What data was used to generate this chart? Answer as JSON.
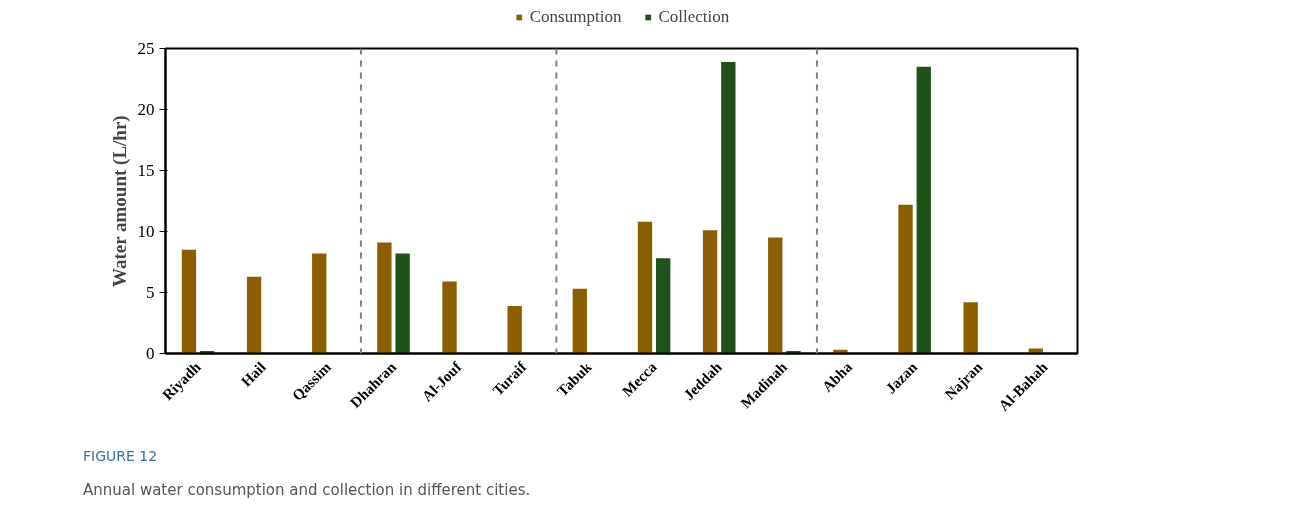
{
  "chart_data": {
    "type": "bar",
    "title": "FIGURE 12",
    "annotations": [
      "Annual water consumption and collection in different cities."
    ],
    "ylabel": "Water amount (L/hr)",
    "categories": [
      "Riyadh",
      "Hail",
      "Qassim",
      "Dhahran",
      "Al-Jouf",
      "Turaif",
      "Tabuk",
      "Mecca",
      "Jeddah",
      "Madinah",
      "Abha",
      "Jazan",
      "Najran",
      "Al-Bahah"
    ],
    "series": [
      {
        "name": "Consumption",
        "color": "#8b5e00",
        "values": [
          8.5,
          6.3,
          8.2,
          9.1,
          5.9,
          3.9,
          5.3,
          10.8,
          10.1,
          9.5,
          0.3,
          12.2,
          4.2,
          0.4
        ]
      },
      {
        "name": "Collection",
        "color": "#1e5218",
        "values": [
          0.2,
          0,
          0,
          8.2,
          0,
          0,
          0,
          7.8,
          23.9,
          0.2,
          0,
          23.5,
          0,
          0
        ]
      }
    ],
    "ylim": [
      0,
      25
    ],
    "yticks": [
      0,
      5,
      10,
      15,
      20,
      25
    ],
    "grid": false,
    "legend": "top"
  }
}
